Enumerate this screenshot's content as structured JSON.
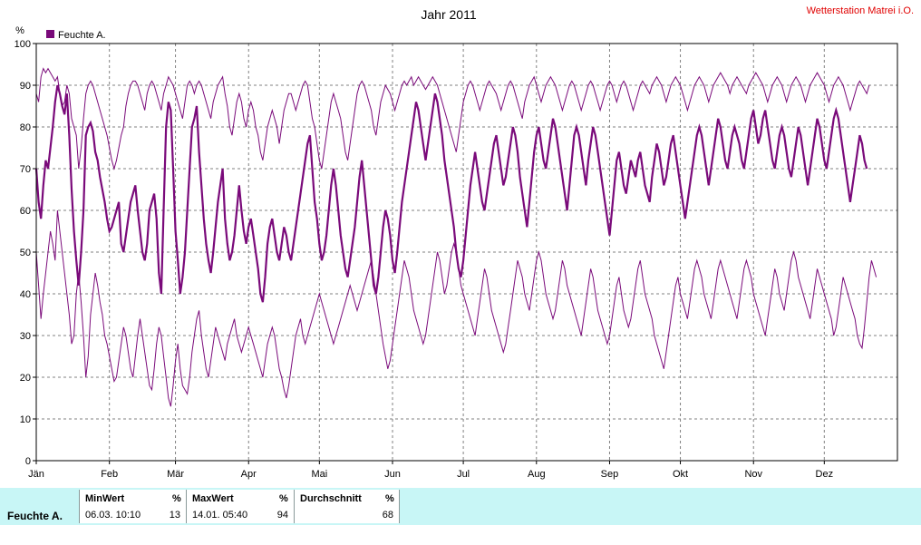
{
  "chart_data": {
    "type": "line",
    "title": "Jahr 2011",
    "station": "Wetterstation Matrei i.O.",
    "ylabel": "%",
    "ylim": [
      0,
      100
    ],
    "yticks": [
      0,
      10,
      20,
      30,
      40,
      50,
      60,
      70,
      80,
      90,
      100
    ],
    "xlim": [
      0,
      365
    ],
    "months": [
      {
        "label": "Jän",
        "day": 0
      },
      {
        "label": "Feb",
        "day": 31
      },
      {
        "label": "Mär",
        "day": 59
      },
      {
        "label": "Apr",
        "day": 90
      },
      {
        "label": "Mai",
        "day": 120
      },
      {
        "label": "Jun",
        "day": 151
      },
      {
        "label": "Jul",
        "day": 181
      },
      {
        "label": "Aug",
        "day": 212
      },
      {
        "label": "Sep",
        "day": 243
      },
      {
        "label": "Okt",
        "day": 273
      },
      {
        "label": "Nov",
        "day": 304
      },
      {
        "label": "Dez",
        "day": 334
      }
    ],
    "grid": true,
    "legend_position": "top-left",
    "series": [
      {
        "name": "Feuchte A.",
        "color": "#7a0a7a",
        "daily_mean": [
          70,
          62,
          58,
          66,
          72,
          70,
          75,
          80,
          86,
          90,
          88,
          85,
          83,
          88,
          78,
          65,
          55,
          48,
          42,
          50,
          60,
          78,
          80,
          81,
          79,
          74,
          72,
          68,
          65,
          62,
          58,
          55,
          56,
          58,
          60,
          62,
          52,
          50,
          54,
          58,
          62,
          64,
          66,
          60,
          55,
          50,
          48,
          52,
          60,
          62,
          64,
          58,
          45,
          40,
          60,
          80,
          86,
          84,
          70,
          55,
          48,
          40,
          44,
          50,
          60,
          70,
          80,
          82,
          85,
          74,
          66,
          58,
          52,
          48,
          45,
          50,
          56,
          62,
          66,
          70,
          58,
          52,
          48,
          50,
          54,
          60,
          66,
          60,
          55,
          52,
          56,
          58,
          54,
          50,
          46,
          40,
          38,
          44,
          52,
          56,
          58,
          54,
          50,
          48,
          52,
          56,
          54,
          50,
          48,
          52,
          56,
          60,
          64,
          68,
          72,
          76,
          78,
          70,
          62,
          58,
          52,
          48,
          50,
          54,
          60,
          66,
          70,
          66,
          60,
          54,
          50,
          46,
          44,
          48,
          52,
          56,
          62,
          68,
          72,
          66,
          60,
          54,
          48,
          42,
          40,
          44,
          50,
          56,
          60,
          58,
          54,
          48,
          45,
          50,
          56,
          62,
          66,
          70,
          74,
          78,
          82,
          86,
          84,
          80,
          76,
          72,
          76,
          80,
          84,
          88,
          86,
          82,
          78,
          72,
          68,
          64,
          60,
          56,
          50,
          46,
          44,
          48,
          54,
          60,
          66,
          70,
          74,
          70,
          66,
          62,
          60,
          64,
          68,
          72,
          76,
          78,
          74,
          70,
          66,
          68,
          72,
          76,
          80,
          78,
          74,
          68,
          64,
          60,
          56,
          62,
          68,
          74,
          78,
          80,
          76,
          72,
          70,
          74,
          78,
          82,
          80,
          76,
          72,
          68,
          64,
          60,
          66,
          72,
          78,
          80,
          78,
          74,
          70,
          66,
          72,
          76,
          80,
          78,
          74,
          70,
          66,
          62,
          58,
          54,
          60,
          66,
          72,
          74,
          70,
          66,
          64,
          68,
          72,
          70,
          68,
          72,
          74,
          70,
          66,
          64,
          62,
          68,
          72,
          76,
          74,
          70,
          66,
          68,
          72,
          76,
          78,
          74,
          70,
          66,
          62,
          58,
          62,
          66,
          70,
          74,
          78,
          80,
          78,
          74,
          70,
          66,
          70,
          74,
          78,
          82,
          80,
          76,
          72,
          70,
          74,
          78,
          80,
          78,
          76,
          72,
          70,
          74,
          78,
          82,
          84,
          80,
          76,
          78,
          82,
          84,
          80,
          76,
          72,
          70,
          74,
          78,
          80,
          78,
          74,
          70,
          68,
          72,
          76,
          80,
          78,
          74,
          70,
          66,
          70,
          74,
          78,
          82,
          80,
          76,
          72,
          70,
          74,
          78,
          82,
          84,
          82,
          78,
          74,
          70,
          66,
          62,
          66,
          70,
          74,
          78,
          76,
          72,
          70
        ],
        "daily_max": [
          88,
          86,
          92,
          94,
          93,
          94,
          93,
          92,
          91,
          92,
          88,
          85,
          86,
          90,
          88,
          82,
          80,
          78,
          70,
          75,
          82,
          88,
          90,
          91,
          90,
          88,
          86,
          84,
          82,
          80,
          78,
          75,
          72,
          70,
          72,
          75,
          78,
          80,
          85,
          88,
          90,
          91,
          91,
          90,
          88,
          86,
          84,
          88,
          90,
          91,
          90,
          88,
          86,
          84,
          88,
          90,
          92,
          91,
          90,
          88,
          86,
          84,
          82,
          86,
          90,
          91,
          90,
          88,
          90,
          91,
          90,
          88,
          86,
          84,
          82,
          86,
          88,
          90,
          91,
          92,
          88,
          85,
          80,
          78,
          82,
          86,
          88,
          86,
          82,
          80,
          84,
          86,
          84,
          80,
          78,
          74,
          72,
          76,
          80,
          82,
          84,
          82,
          80,
          76,
          80,
          84,
          86,
          88,
          88,
          86,
          84,
          86,
          88,
          90,
          91,
          90,
          86,
          82,
          80,
          76,
          72,
          70,
          74,
          78,
          82,
          86,
          88,
          86,
          84,
          82,
          78,
          74,
          72,
          76,
          80,
          84,
          88,
          90,
          91,
          90,
          88,
          86,
          84,
          80,
          78,
          82,
          86,
          88,
          90,
          89,
          88,
          86,
          84,
          86,
          88,
          90,
          91,
          90,
          91,
          92,
          90,
          91,
          92,
          91,
          90,
          89,
          90,
          91,
          92,
          91,
          90,
          88,
          86,
          84,
          82,
          80,
          78,
          76,
          74,
          78,
          82,
          86,
          88,
          90,
          91,
          90,
          88,
          86,
          84,
          86,
          88,
          90,
          91,
          90,
          89,
          88,
          86,
          84,
          86,
          88,
          90,
          91,
          90,
          88,
          86,
          84,
          82,
          86,
          88,
          90,
          91,
          92,
          90,
          88,
          86,
          88,
          90,
          91,
          92,
          91,
          90,
          88,
          86,
          84,
          86,
          88,
          90,
          91,
          90,
          88,
          86,
          84,
          86,
          88,
          90,
          91,
          90,
          88,
          86,
          84,
          86,
          88,
          90,
          91,
          90,
          88,
          86,
          88,
          90,
          91,
          90,
          88,
          86,
          84,
          86,
          88,
          90,
          91,
          90,
          89,
          88,
          90,
          91,
          92,
          91,
          90,
          88,
          86,
          88,
          90,
          91,
          92,
          91,
          90,
          88,
          86,
          84,
          86,
          88,
          90,
          91,
          92,
          91,
          90,
          88,
          86,
          88,
          90,
          91,
          92,
          93,
          92,
          91,
          90,
          88,
          90,
          91,
          92,
          91,
          90,
          89,
          88,
          90,
          91,
          92,
          93,
          92,
          91,
          90,
          88,
          86,
          88,
          90,
          91,
          92,
          91,
          90,
          88,
          86,
          88,
          90,
          91,
          92,
          91,
          90,
          88,
          86,
          88,
          90,
          91,
          92,
          93,
          92,
          91,
          90,
          88,
          86,
          88,
          90,
          91,
          92,
          91,
          90,
          88,
          86,
          84,
          86,
          88,
          90,
          91,
          90,
          89,
          88,
          90
        ],
        "daily_min": [
          50,
          42,
          34,
          40,
          45,
          50,
          55,
          52,
          48,
          60,
          55,
          50,
          45,
          40,
          35,
          28,
          30,
          40,
          45,
          38,
          30,
          20,
          25,
          35,
          40,
          45,
          42,
          38,
          35,
          30,
          28,
          25,
          22,
          19,
          20,
          24,
          28,
          32,
          30,
          26,
          22,
          20,
          25,
          30,
          34,
          30,
          26,
          22,
          18,
          17,
          22,
          28,
          32,
          30,
          25,
          20,
          15,
          13,
          18,
          24,
          28,
          22,
          18,
          17,
          16,
          20,
          26,
          30,
          34,
          36,
          30,
          26,
          22,
          20,
          24,
          28,
          32,
          30,
          28,
          26,
          24,
          28,
          30,
          32,
          34,
          30,
          28,
          26,
          28,
          30,
          32,
          30,
          28,
          26,
          24,
          22,
          20,
          24,
          28,
          30,
          32,
          30,
          26,
          22,
          20,
          17,
          15,
          18,
          22,
          26,
          30,
          32,
          34,
          30,
          28,
          30,
          32,
          34,
          36,
          38,
          40,
          38,
          36,
          34,
          32,
          30,
          28,
          30,
          32,
          34,
          36,
          38,
          40,
          42,
          40,
          38,
          36,
          38,
          40,
          42,
          44,
          46,
          48,
          44,
          40,
          36,
          32,
          28,
          25,
          22,
          24,
          28,
          32,
          36,
          40,
          44,
          48,
          46,
          44,
          40,
          36,
          34,
          32,
          30,
          28,
          30,
          34,
          38,
          42,
          46,
          50,
          48,
          44,
          40,
          42,
          46,
          50,
          52,
          50,
          46,
          42,
          40,
          38,
          36,
          34,
          32,
          30,
          34,
          38,
          42,
          46,
          44,
          40,
          36,
          34,
          32,
          30,
          28,
          26,
          28,
          32,
          36,
          40,
          44,
          48,
          46,
          44,
          40,
          38,
          36,
          40,
          44,
          48,
          50,
          48,
          44,
          40,
          38,
          36,
          34,
          36,
          40,
          44,
          48,
          46,
          42,
          40,
          38,
          36,
          34,
          32,
          30,
          34,
          38,
          42,
          46,
          44,
          40,
          36,
          34,
          32,
          30,
          28,
          30,
          34,
          38,
          42,
          44,
          40,
          36,
          34,
          32,
          34,
          38,
          42,
          46,
          48,
          44,
          40,
          38,
          36,
          34,
          30,
          28,
          26,
          24,
          22,
          26,
          30,
          34,
          38,
          42,
          44,
          40,
          38,
          36,
          34,
          38,
          42,
          46,
          48,
          46,
          44,
          40,
          38,
          36,
          34,
          38,
          42,
          46,
          48,
          46,
          44,
          42,
          40,
          38,
          36,
          34,
          38,
          42,
          46,
          48,
          46,
          44,
          40,
          38,
          36,
          34,
          32,
          30,
          34,
          38,
          42,
          46,
          44,
          40,
          38,
          36,
          40,
          44,
          48,
          50,
          48,
          44,
          42,
          40,
          38,
          36,
          34,
          38,
          42,
          46,
          44,
          42,
          40,
          38,
          36,
          34,
          30,
          32,
          36,
          40,
          44,
          42,
          40,
          38,
          36,
          34,
          30,
          28,
          27,
          32,
          38,
          44,
          48,
          46,
          44
        ]
      }
    ]
  },
  "footer": {
    "series_label": "Feuchte A.",
    "min": {
      "header": "MinWert",
      "unit": "%",
      "datetime": "06.03.  10:10",
      "value": "13"
    },
    "max": {
      "header": "MaxWert",
      "unit": "%",
      "datetime": "14.01.  05:40",
      "value": "94"
    },
    "avg": {
      "header": "Durchschnitt",
      "unit": "%",
      "value": "68"
    }
  }
}
